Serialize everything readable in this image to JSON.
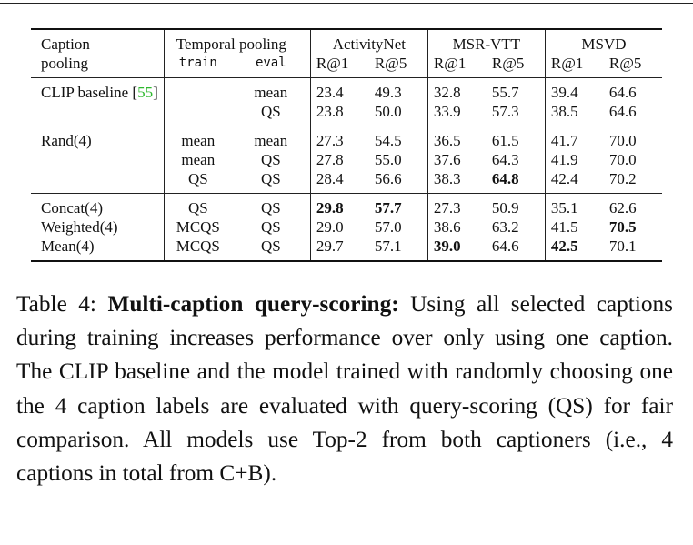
{
  "table": {
    "header": {
      "caption_pooling_line1": "Caption",
      "caption_pooling_line2": "pooling",
      "temporal_pooling": "Temporal pooling",
      "train": "train",
      "eval": "eval",
      "datasets": [
        "ActivityNet",
        "MSR-VTT",
        "MSVD"
      ],
      "metrics": [
        "R@1",
        "R@5",
        "R@1",
        "R@5",
        "R@1",
        "R@5"
      ]
    },
    "clip": {
      "label": "CLIP baseline",
      "cite_open": "[",
      "cite_num": "55",
      "cite_close": "]",
      "rows": [
        {
          "eval": "mean",
          "values": [
            "23.4",
            "49.3",
            "32.8",
            "55.7",
            "39.4",
            "64.6"
          ]
        },
        {
          "eval": "QS",
          "values": [
            "23.8",
            "50.0",
            "33.9",
            "57.3",
            "38.5",
            "64.6"
          ]
        }
      ]
    },
    "rand": {
      "label": "Rand(4)",
      "rows": [
        {
          "train": "mean",
          "eval": "mean",
          "values": [
            "27.3",
            "54.5",
            "36.5",
            "61.5",
            "41.7",
            "70.0"
          ]
        },
        {
          "train": "mean",
          "eval": "QS",
          "values": [
            "27.8",
            "55.0",
            "37.6",
            "64.3",
            "41.9",
            "70.0"
          ]
        },
        {
          "train": "QS",
          "eval": "QS",
          "values": [
            "28.4",
            "56.6",
            "38.3",
            "64.8",
            "42.4",
            "70.2"
          ]
        }
      ]
    },
    "multi": {
      "rows": [
        {
          "label": "Concat(4)",
          "train": "QS",
          "eval": "QS",
          "values": [
            "29.8",
            "57.7",
            "27.3",
            "50.9",
            "35.1",
            "62.6"
          ]
        },
        {
          "label": "Weighted(4)",
          "train": "MCQS",
          "eval": "QS",
          "values": [
            "29.0",
            "57.0",
            "38.6",
            "63.2",
            "41.5",
            "70.5"
          ]
        },
        {
          "label": "Mean(4)",
          "train": "MCQS",
          "eval": "QS",
          "values": [
            "29.7",
            "57.1",
            "39.0",
            "64.6",
            "42.5",
            "70.1"
          ]
        }
      ]
    }
  },
  "caption": {
    "label": "Table 4:",
    "title": "Multi-caption query-scoring:",
    "text": "Using all selected captions during training increases performance over only using one caption. The CLIP baseline and the model trained with randomly choosing one the 4 caption labels are evaluated with query-scoring (QS) for fair comparison. All models use Top-2 from both captioners (i.e., 4 captions in total from C+B)."
  }
}
